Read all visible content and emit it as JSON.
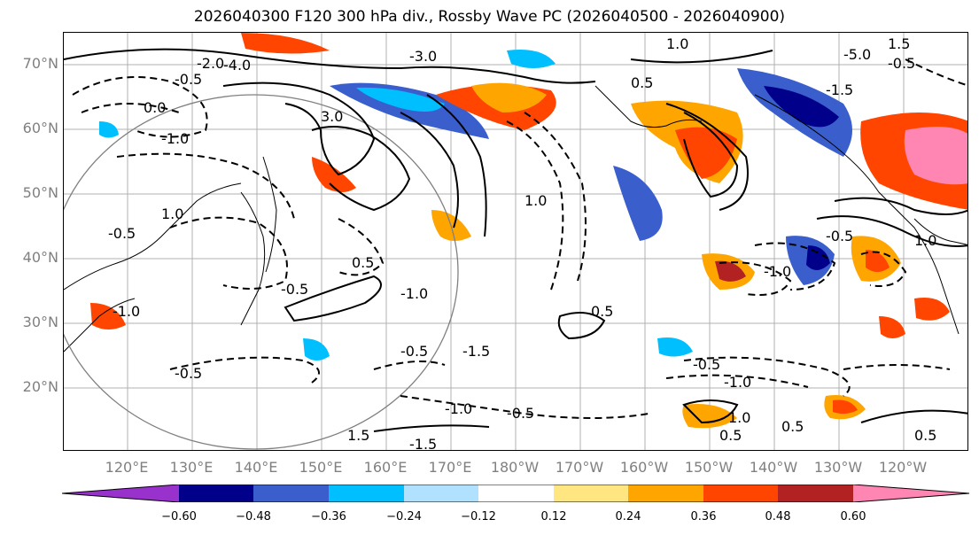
{
  "title": "2026040300 F120 300 hPa div., Rossby Wave PC (2026040500 - 2026040900)",
  "lat_labels": [
    "70°N",
    "60°N",
    "50°N",
    "40°N",
    "30°N",
    "20°N"
  ],
  "lon_labels": [
    "120°E",
    "130°E",
    "140°E",
    "150°E",
    "160°E",
    "170°E",
    "180°W",
    "170°W",
    "160°W",
    "150°W",
    "140°W",
    "130°W",
    "120°W"
  ],
  "colorbar": {
    "ticks": [
      "−0.60",
      "−0.48",
      "−0.36",
      "−0.24",
      "−0.12",
      "0.12",
      "0.24",
      "0.36",
      "0.48",
      "0.60"
    ],
    "colors": [
      "#9932cc",
      "#00008b",
      "#3a5fcd",
      "#00bfff",
      "#b0e2ff",
      "#ffffff",
      "#ffe680",
      "#ffa500",
      "#ff4500",
      "#b22222",
      "#ff85b3"
    ]
  },
  "contour_labels": [
    "-3.0",
    "-2.0",
    "-4.0",
    "-0.5",
    "0.5",
    "-1.0",
    "1.0",
    "-1.5",
    "1.5",
    "3.0",
    "-5.0",
    "0.0",
    "-0.5",
    "1.0",
    "0.5",
    "-0.5",
    "-1.0",
    "0.5",
    "-1.5",
    "-0.5",
    "-1.0",
    "-0.5",
    "1.5",
    "-1.0",
    "1.0",
    "-0.5",
    "0.5",
    "-0.5",
    "1.0",
    "-1.0",
    "-0.5",
    "0.5",
    "-1.0",
    "1.0",
    "-1.5",
    "0.5",
    "-0.5"
  ]
}
